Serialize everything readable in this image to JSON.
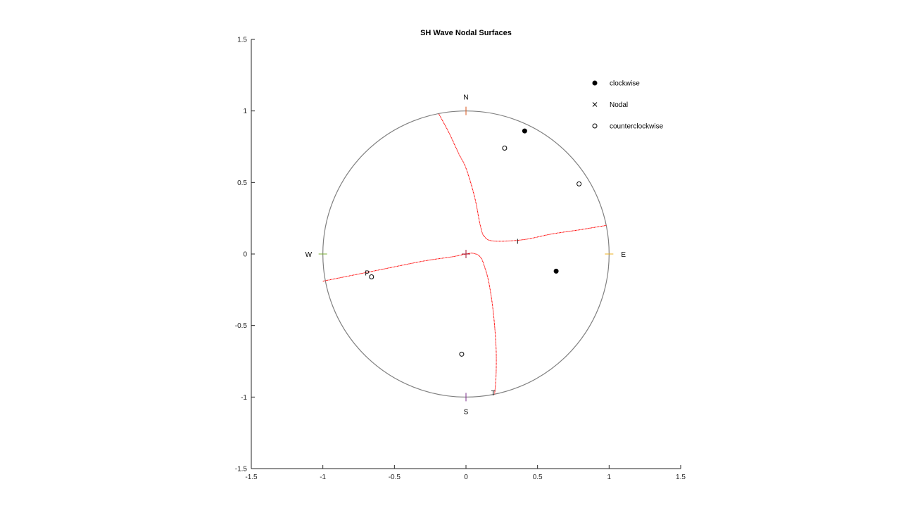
{
  "chart_data": {
    "type": "scatter",
    "title": "SH Wave Nodal Surfaces",
    "xlabel": "",
    "ylabel": "",
    "xlim": [
      -1.5,
      1.5
    ],
    "ylim": [
      -1.5,
      1.5
    ],
    "x_ticks": [
      -1.5,
      -1,
      -0.5,
      0,
      0.5,
      1,
      1.5
    ],
    "x_tick_labels": [
      "-1.5",
      "-1",
      "-0.5",
      "0",
      "0.5",
      "1",
      "1.5"
    ],
    "y_ticks": [
      -1.5,
      -1,
      -0.5,
      0,
      0.5,
      1,
      1.5
    ],
    "y_tick_labels": [
      "-1.5",
      "-1",
      "-0.5",
      "0",
      "0.5",
      "1",
      "1.5"
    ],
    "grid": false,
    "legend_position": "top-right",
    "direction_labels": [
      {
        "text": "N",
        "x": 0,
        "y": 1.1
      },
      {
        "text": "S",
        "x": 0,
        "y": -1.1
      },
      {
        "text": "W",
        "x": -1.1,
        "y": 0
      },
      {
        "text": "E",
        "x": 1.1,
        "y": 0
      }
    ],
    "direction_ticks": [
      {
        "name": "N",
        "x": 0,
        "y": 1,
        "orientation": "vertical",
        "color": "#D95319"
      },
      {
        "name": "S",
        "x": 0,
        "y": -1,
        "orientation": "vertical",
        "color": "#7E2F8E"
      },
      {
        "name": "W",
        "x": -1,
        "y": 0,
        "orientation": "horizontal",
        "color": "#77AC30"
      },
      {
        "name": "E",
        "x": 1,
        "y": 0,
        "orientation": "horizontal",
        "color": "#EDB120"
      },
      {
        "name": "center",
        "x": 0,
        "y": 0,
        "orientation": "cross",
        "color": "#A2142F"
      }
    ],
    "axis_markers": [
      {
        "text": "P",
        "x": -0.68,
        "y": -0.13,
        "tick_x": -0.67,
        "tick_y": -0.13
      },
      {
        "text": "I",
        "x": 0.37,
        "y": 0.09,
        "tick_x": 0.36,
        "tick_y": 0.09
      },
      {
        "text": "T",
        "x": 0.2,
        "y": -0.97,
        "tick_x": 0.2,
        "tick_y": -0.97
      }
    ],
    "stereonet_circle": {
      "radius": 1,
      "color": "#808080"
    },
    "nodal_curves": [
      {
        "name": "nodal-curve-1",
        "color": "#ff0000",
        "points": [
          [
            -1.0,
            -0.19
          ],
          [
            -0.6,
            -0.11
          ],
          [
            -0.3,
            -0.05
          ],
          [
            -0.1,
            -0.02
          ],
          [
            0.0,
            0.0
          ],
          [
            0.05,
            0.005
          ],
          [
            0.1,
            -0.02
          ],
          [
            0.13,
            -0.09
          ],
          [
            0.16,
            -0.2
          ],
          [
            0.19,
            -0.4
          ],
          [
            0.21,
            -0.65
          ],
          [
            0.21,
            -0.85
          ],
          [
            0.2,
            -0.98
          ]
        ]
      },
      {
        "name": "nodal-curve-2",
        "color": "#ff0000",
        "points": [
          [
            -0.19,
            0.98
          ],
          [
            -0.12,
            0.85
          ],
          [
            -0.05,
            0.7
          ],
          [
            0.0,
            0.6
          ],
          [
            0.06,
            0.4
          ],
          [
            0.1,
            0.2
          ],
          [
            0.13,
            0.12
          ],
          [
            0.2,
            0.09
          ],
          [
            0.4,
            0.1
          ],
          [
            0.6,
            0.14
          ],
          [
            0.8,
            0.17
          ],
          [
            0.98,
            0.2
          ]
        ]
      }
    ],
    "series": [
      {
        "name": "clockwise",
        "marker": "filled-circle",
        "color": "#000000",
        "x": [
          0.41,
          0.63
        ],
        "y": [
          0.86,
          -0.12
        ]
      },
      {
        "name": "Nodal",
        "marker": "x",
        "color": "#000000",
        "x": [],
        "y": []
      },
      {
        "name": "counterclockwise",
        "marker": "open-circle",
        "color": "#000000",
        "x": [
          0.27,
          0.79,
          -0.66,
          -0.03
        ],
        "y": [
          0.74,
          0.49,
          -0.16,
          -0.7
        ]
      }
    ]
  }
}
